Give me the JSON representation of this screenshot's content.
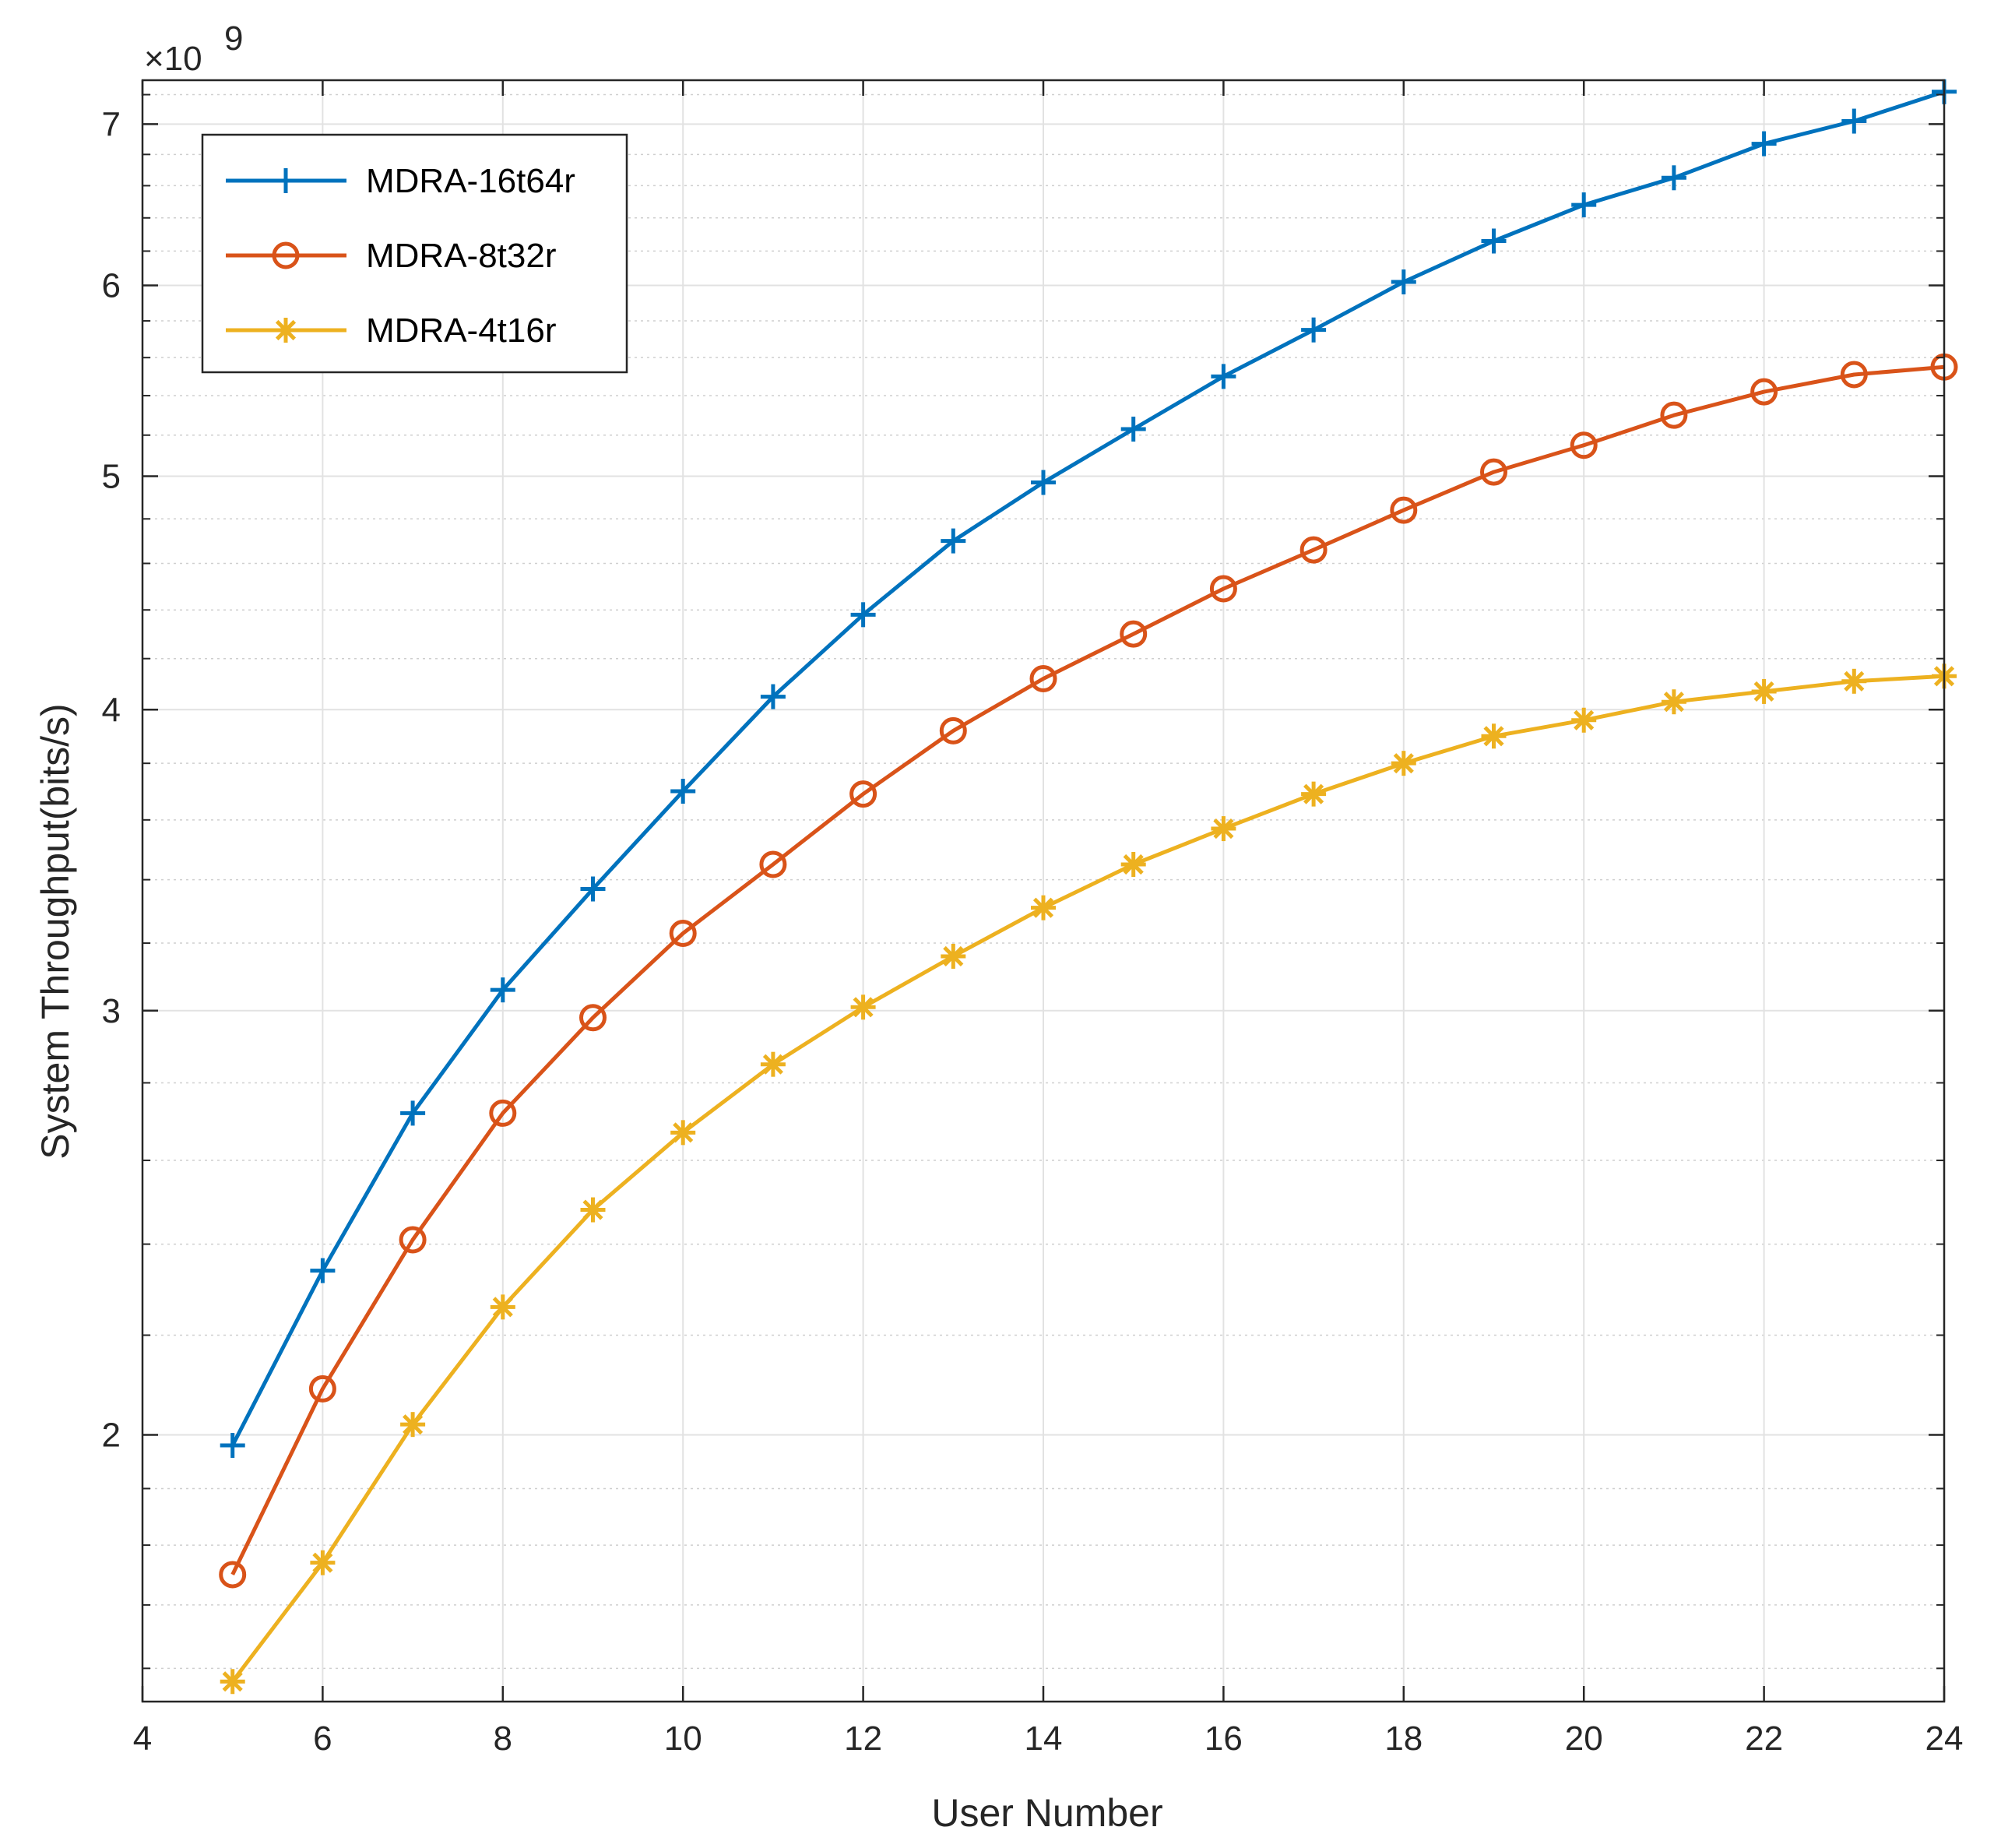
{
  "chart_data": {
    "type": "line",
    "title": "",
    "xlabel": "User Number",
    "ylabel": "System Throughput(bits/s)",
    "y_multiplier": "×10",
    "y_exponent": "9",
    "y_scale": "log",
    "xlim": [
      4,
      24
    ],
    "ylim": [
      1.55,
      7.3
    ],
    "x_ticks": [
      4,
      6,
      8,
      10,
      12,
      14,
      16,
      18,
      20,
      22,
      24
    ],
    "x_tick_labels": [
      "4",
      "6",
      "8",
      "10",
      "12",
      "14",
      "16",
      "18",
      "20",
      "22",
      "24"
    ],
    "y_ticks": [
      2,
      3,
      4,
      5,
      6,
      7
    ],
    "y_tick_labels": [
      "2",
      "3",
      "4",
      "5",
      "6",
      "7"
    ],
    "y_minor_ticks": [
      1.6,
      1.7,
      1.8,
      1.9,
      2.2,
      2.4,
      2.6,
      2.8,
      3.2,
      3.4,
      3.6,
      3.8,
      4.2,
      4.4,
      4.6,
      4.8,
      5.2,
      5.4,
      5.6,
      5.8,
      6.2,
      6.4,
      6.6,
      6.8,
      7.2
    ],
    "grid": true,
    "legend_position": "top-left",
    "x": [
      5,
      6,
      7,
      8,
      9,
      10,
      11,
      12,
      13,
      14,
      15,
      16,
      17,
      18,
      19,
      20,
      21,
      22,
      23,
      24
    ],
    "series": [
      {
        "name": "MDRA-16t64r",
        "color": "#0072BD",
        "marker": "plus",
        "values": [
          1.98,
          2.34,
          2.72,
          3.06,
          3.37,
          3.7,
          4.05,
          4.38,
          4.7,
          4.97,
          5.23,
          5.5,
          5.75,
          6.02,
          6.26,
          6.48,
          6.65,
          6.87,
          7.02,
          7.22
        ]
      },
      {
        "name": "MDRA-8t32r",
        "color": "#D95319",
        "marker": "circle",
        "values": [
          1.75,
          2.09,
          2.41,
          2.72,
          2.98,
          3.23,
          3.45,
          3.69,
          3.92,
          4.12,
          4.3,
          4.49,
          4.66,
          4.84,
          5.02,
          5.15,
          5.3,
          5.42,
          5.51,
          5.55
        ]
      },
      {
        "name": "MDRA-4t16r",
        "color": "#EDB120",
        "marker": "asterisk",
        "values": [
          1.58,
          1.77,
          2.02,
          2.26,
          2.48,
          2.67,
          2.85,
          3.01,
          3.16,
          3.31,
          3.45,
          3.57,
          3.69,
          3.8,
          3.9,
          3.96,
          4.03,
          4.07,
          4.11,
          4.13
        ]
      }
    ]
  }
}
